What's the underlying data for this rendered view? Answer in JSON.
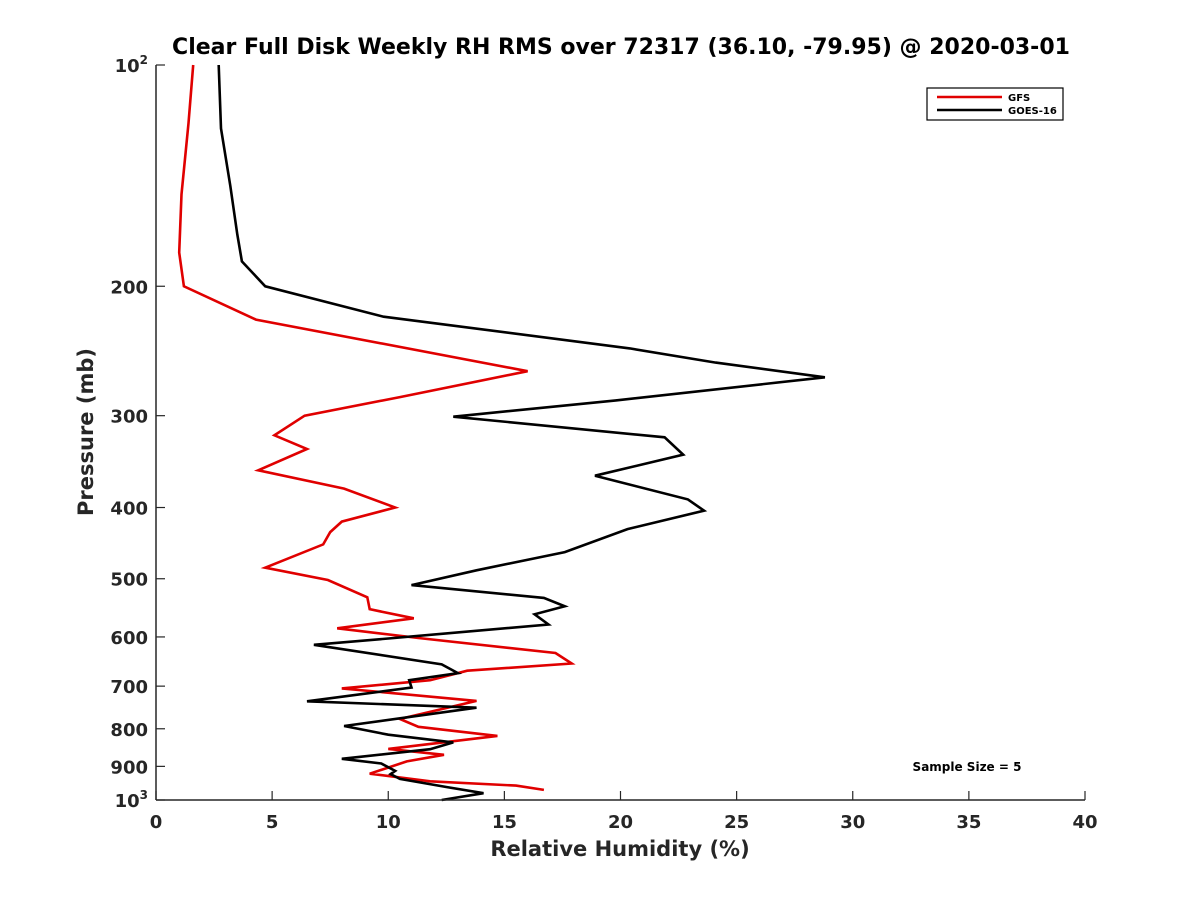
{
  "chart_data": {
    "type": "line",
    "title": "Clear Full Disk Weekly RH RMS over 72317 (36.10, -79.95) @ 2020-03-01",
    "xlabel": "Relative Humidity (%)",
    "ylabel": "Pressure (mb)",
    "xlim": [
      0,
      40
    ],
    "ylim": [
      100,
      1000
    ],
    "y_scale": "log",
    "y_reversed": true,
    "x_ticks": [
      0,
      5,
      10,
      15,
      20,
      25,
      30,
      35,
      40
    ],
    "y_ticks": [
      {
        "value": 100,
        "base": "10",
        "exp": "2"
      },
      {
        "value": 200,
        "label": "200"
      },
      {
        "value": 300,
        "label": "300"
      },
      {
        "value": 400,
        "label": "400"
      },
      {
        "value": 500,
        "label": "500"
      },
      {
        "value": 600,
        "label": "600"
      },
      {
        "value": 700,
        "label": "700"
      },
      {
        "value": 800,
        "label": "800"
      },
      {
        "value": 900,
        "label": "900"
      },
      {
        "value": 1000,
        "base": "10",
        "exp": "3"
      }
    ],
    "grid": false,
    "legend_position": "top-right",
    "annotation": "Sample Size = 5",
    "series": [
      {
        "name": "GFS",
        "color": "#e00000",
        "points": [
          [
            1.6,
            100
          ],
          [
            1.4,
            120
          ],
          [
            1.1,
            150
          ],
          [
            1.0,
            180
          ],
          [
            1.2,
            200
          ],
          [
            4.3,
            222
          ],
          [
            16.0,
            261
          ],
          [
            10.5,
            283
          ],
          [
            6.4,
            300
          ],
          [
            5.1,
            319
          ],
          [
            6.5,
            333
          ],
          [
            4.4,
            356
          ],
          [
            8.1,
            377
          ],
          [
            10.3,
            400
          ],
          [
            8.0,
            418
          ],
          [
            7.5,
            432
          ],
          [
            7.2,
            449
          ],
          [
            4.7,
            483
          ],
          [
            7.4,
            502
          ],
          [
            9.1,
            530
          ],
          [
            9.2,
            550
          ],
          [
            11.1,
            566
          ],
          [
            7.8,
            584
          ],
          [
            11.3,
            602
          ],
          [
            17.2,
            631
          ],
          [
            17.9,
            652
          ],
          [
            13.4,
            667
          ],
          [
            11.8,
            687
          ],
          [
            8.0,
            705
          ],
          [
            13.8,
            733
          ],
          [
            10.5,
            776
          ],
          [
            11.3,
            795
          ],
          [
            14.7,
            818
          ],
          [
            10.0,
            852
          ],
          [
            12.4,
            868
          ],
          [
            10.8,
            886
          ],
          [
            9.2,
            921
          ],
          [
            11.8,
            943
          ],
          [
            15.5,
            956
          ],
          [
            16.7,
            969
          ]
        ]
      },
      {
        "name": "GOES-16",
        "color": "#000000",
        "points": [
          [
            2.7,
            100
          ],
          [
            2.8,
            122
          ],
          [
            3.2,
            146
          ],
          [
            3.5,
            170
          ],
          [
            3.7,
            185
          ],
          [
            4.7,
            200
          ],
          [
            9.8,
            220
          ],
          [
            20.4,
            243
          ],
          [
            24.1,
            254
          ],
          [
            28.8,
            266
          ],
          [
            19.8,
            286
          ],
          [
            12.8,
            301
          ],
          [
            21.9,
            321
          ],
          [
            22.7,
            339
          ],
          [
            18.9,
            362
          ],
          [
            22.9,
            390
          ],
          [
            23.6,
            404
          ],
          [
            20.3,
            428
          ],
          [
            17.6,
            460
          ],
          [
            13.8,
            487
          ],
          [
            11.0,
            510
          ],
          [
            16.7,
            531
          ],
          [
            17.6,
            545
          ],
          [
            16.3,
            559
          ],
          [
            16.9,
            577
          ],
          [
            10.0,
            603
          ],
          [
            6.8,
            615
          ],
          [
            12.3,
            654
          ],
          [
            13.0,
            672
          ],
          [
            10.9,
            687
          ],
          [
            11.0,
            703
          ],
          [
            6.5,
            734
          ],
          [
            13.8,
            749
          ],
          [
            8.1,
            793
          ],
          [
            10.0,
            815
          ],
          [
            12.8,
            835
          ],
          [
            11.8,
            853
          ],
          [
            8.0,
            879
          ],
          [
            9.7,
            892
          ],
          [
            10.3,
            913
          ],
          [
            10.1,
            922
          ],
          [
            10.5,
            936
          ],
          [
            12.5,
            960
          ],
          [
            14.1,
            979
          ],
          [
            12.3,
            1000
          ]
        ]
      }
    ]
  }
}
